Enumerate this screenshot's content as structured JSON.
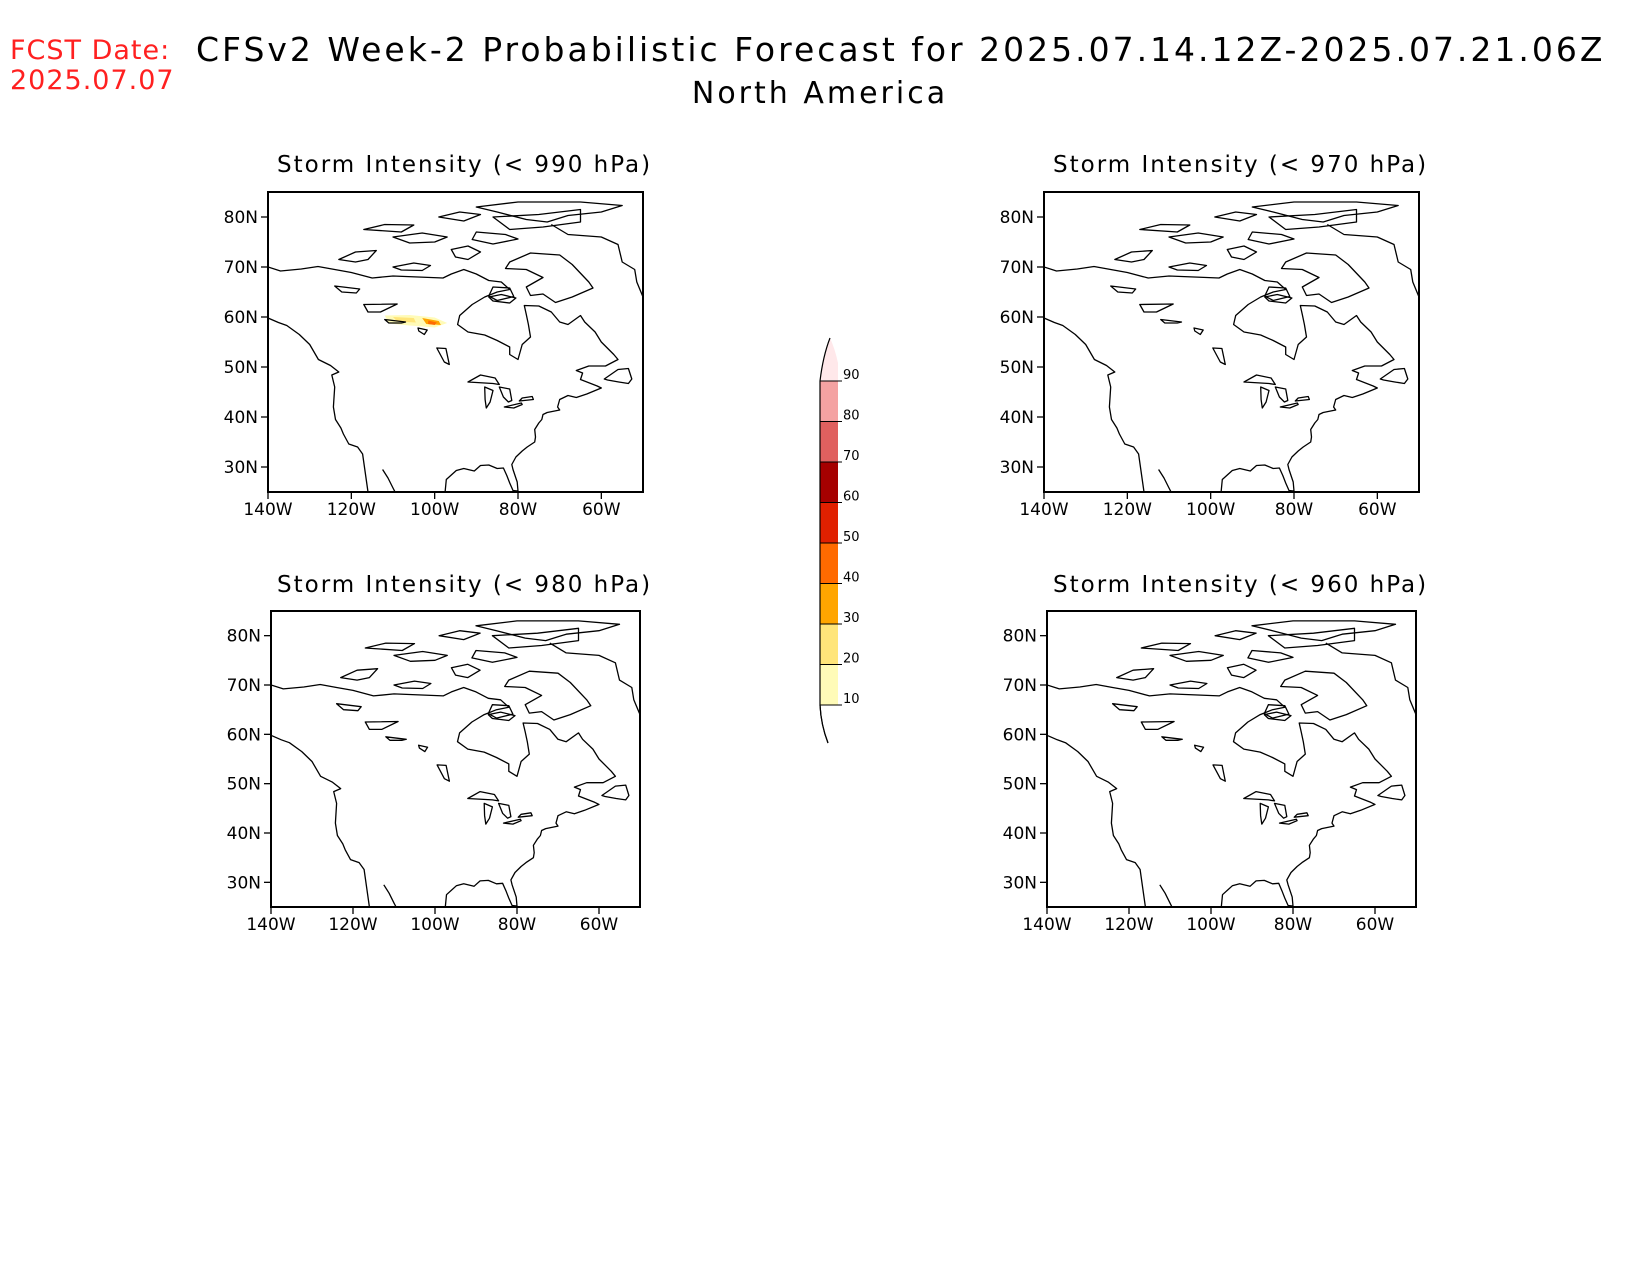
{
  "header": {
    "fcst_label": "FCST Date:",
    "fcst_date": "2025.07.07",
    "title": "CFSv2 Week-2 Probabilistic Forecast for 2025.07.14.12Z-2025.07.21.06Z",
    "subtitle": "North America"
  },
  "panels": [
    {
      "id": "p990",
      "title": "Storm Intensity (< 990 hPa)",
      "has_signal": true
    },
    {
      "id": "p970",
      "title": "Storm Intensity (< 970 hPa)",
      "has_signal": false
    },
    {
      "id": "p980",
      "title": "Storm Intensity (< 980 hPa)",
      "has_signal": false
    },
    {
      "id": "p960",
      "title": "Storm Intensity (< 960 hPa)",
      "has_signal": false
    }
  ],
  "axes": {
    "lat_labels": [
      "80N",
      "70N",
      "60N",
      "50N",
      "40N",
      "30N"
    ],
    "lon_labels": [
      "140W",
      "120W",
      "100W",
      "80W",
      "60W"
    ],
    "lat_range": [
      25,
      85
    ],
    "lon_range": [
      -140,
      -50
    ]
  },
  "colorbar": {
    "levels": [
      "10",
      "20",
      "30",
      "40",
      "50",
      "60",
      "70",
      "80",
      "90"
    ],
    "colors": [
      "#fffbb8",
      "#ffe57a",
      "#ffa500",
      "#ff6a00",
      "#e02000",
      "#a50000",
      "#e0605f",
      "#f4a2a2",
      "#ffe8ea"
    ]
  }
}
